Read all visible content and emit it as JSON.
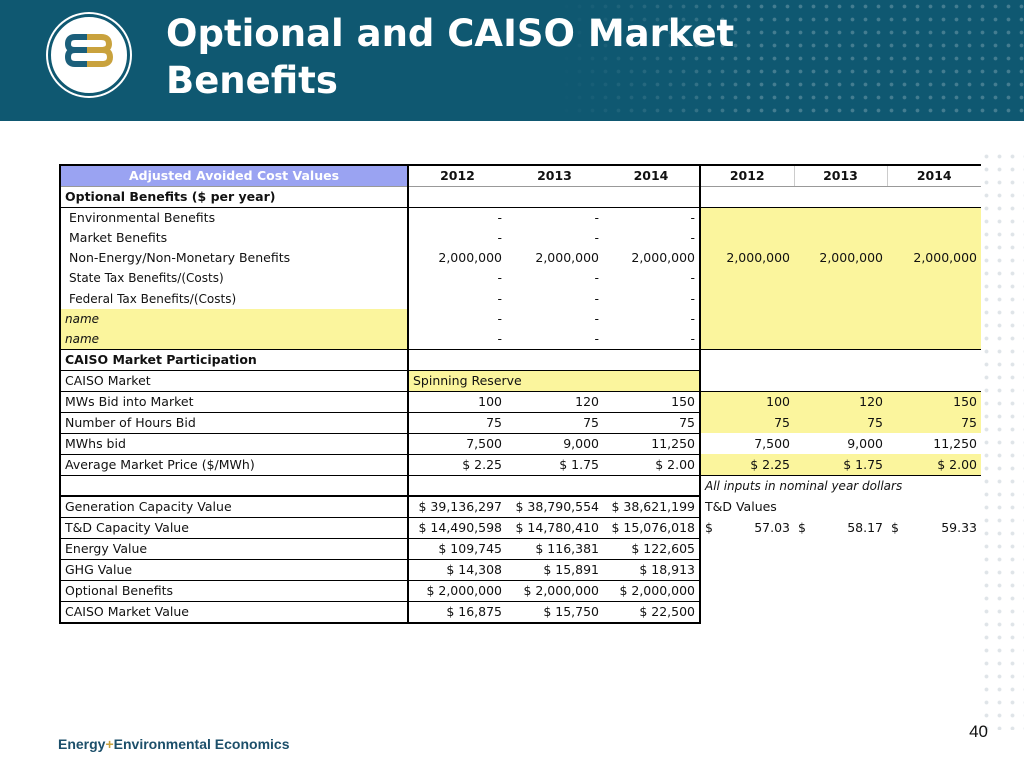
{
  "slide": {
    "title": "Optional and CAISO Market Benefits",
    "page_number": "40",
    "footer_brand_a": "Energy",
    "footer_brand_plus": "+",
    "footer_brand_b": "Environmental Economics",
    "colors": {
      "header": "#0f5871",
      "highlight": "#fbf59d",
      "header_cell": "#9aa3f2"
    }
  },
  "table": {
    "header": {
      "label": "Adjusted Avoided Cost Values",
      "years_a": [
        "2012",
        "2013",
        "2014"
      ],
      "years_b": [
        "2012",
        "2013",
        "2014"
      ]
    },
    "optional_header": "Optional Benefits ($ per year)",
    "optional_rows": [
      {
        "label": "Environmental Benefits",
        "v": [
          "-",
          "-",
          "-"
        ],
        "r": [
          "",
          "",
          ""
        ]
      },
      {
        "label": "Market Benefits",
        "v": [
          "-",
          "-",
          "-"
        ],
        "r": [
          "",
          "",
          ""
        ]
      },
      {
        "label": "Non-Energy/Non-Monetary Benefits",
        "v": [
          "2,000,000",
          "2,000,000",
          "2,000,000"
        ],
        "r": [
          "2,000,000",
          "2,000,000",
          "2,000,000"
        ]
      },
      {
        "label": "State Tax Benefits/(Costs)",
        "v": [
          "-",
          "-",
          "-"
        ],
        "r": [
          "",
          "",
          ""
        ]
      },
      {
        "label": "Federal Tax Benefits/(Costs)",
        "v": [
          "-",
          "-",
          "-"
        ],
        "r": [
          "",
          "",
          ""
        ]
      },
      {
        "label": "name",
        "v": [
          "-",
          "-",
          "-"
        ],
        "r": [
          "",
          "",
          ""
        ]
      },
      {
        "label": "name",
        "v": [
          "-",
          "-",
          "-"
        ],
        "r": [
          "",
          "",
          ""
        ]
      }
    ],
    "caiso_header": "CAISO Market Participation",
    "caiso_market_label": "CAISO Market",
    "caiso_market_value": "Spinning Reserve",
    "caiso_rows": [
      {
        "label": "MWs Bid into Market",
        "v": [
          "100",
          "120",
          "150"
        ],
        "r": [
          "100",
          "120",
          "150"
        ]
      },
      {
        "label": "Number of Hours Bid",
        "v": [
          "75",
          "75",
          "75"
        ],
        "r": [
          "75",
          "75",
          "75"
        ]
      },
      {
        "label": "MWhs bid",
        "v": [
          "7,500",
          "9,000",
          "11,250"
        ],
        "r": [
          "7,500",
          "9,000",
          "11,250"
        ]
      },
      {
        "label": "Average Market Price ($/MWh)",
        "v": [
          "$ 2.25",
          "$ 1.75",
          "$ 2.00"
        ],
        "r": [
          "$ 2.25",
          "$ 1.75",
          "$ 2.00"
        ]
      }
    ],
    "note": "All inputs in nominal year dollars",
    "results_rows": [
      {
        "label": "Generation Capacity Value",
        "v": [
          "$ 39,136,297",
          "$ 38,790,554",
          "$ 38,621,199"
        ]
      },
      {
        "label": "T&D Capacity Value",
        "v": [
          "$ 14,490,598",
          "$ 14,780,410",
          "$ 15,076,018"
        ]
      },
      {
        "label": "Energy Value",
        "v": [
          "$ 109,745",
          "$ 116,381",
          "$ 122,605"
        ]
      },
      {
        "label": "GHG Value",
        "v": [
          "$ 14,308",
          "$ 15,891",
          "$ 18,913"
        ]
      },
      {
        "label": "Optional Benefits",
        "v": [
          "$ 2,000,000",
          "$ 2,000,000",
          "$ 2,000,000"
        ]
      },
      {
        "label": "CAISO Market Value",
        "v": [
          "$ 16,875",
          "$ 15,750",
          "$ 22,500"
        ]
      }
    ],
    "td_values": {
      "label": "T&D Values",
      "currency": "$",
      "values": [
        "57.03",
        "58.17",
        "59.33"
      ]
    }
  }
}
